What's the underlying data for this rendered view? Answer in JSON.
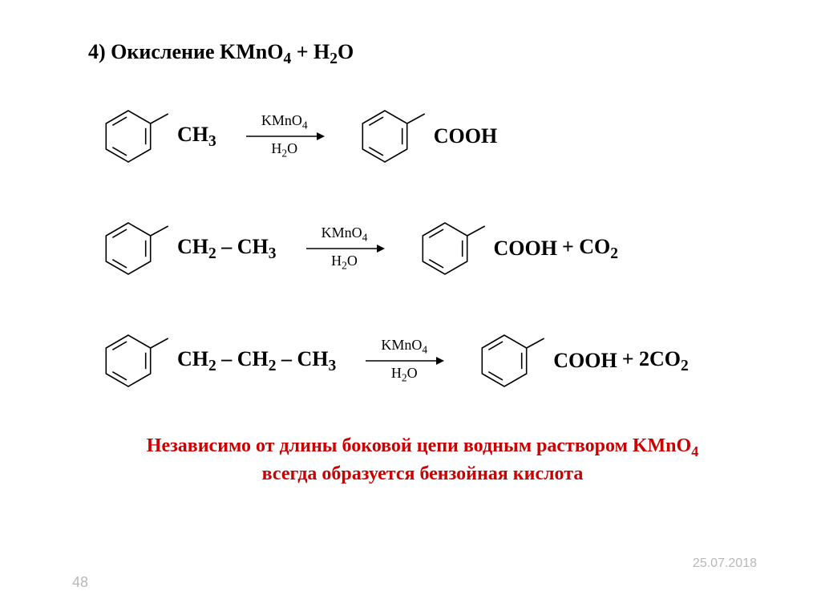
{
  "heading": "4) Окисление KMnO₄ + H₂O",
  "ring": {
    "stroke": "#000000",
    "stroke_width": 1.6
  },
  "arrow": {
    "top_label": "KMnO₄",
    "bottom_label": "H₂O",
    "color": "#000000"
  },
  "reactions": [
    {
      "reactant_subst": "CH₃",
      "product_subst": "COOH",
      "extra": ""
    },
    {
      "reactant_subst": "CH₂ – CH₃",
      "product_subst": "COOH",
      "extra": " + CO₂"
    },
    {
      "reactant_subst": "CH₂ – CH₂ – CH₃",
      "product_subst": "COOH",
      "extra": " + 2CO₂"
    }
  ],
  "conclusion": {
    "line1": "Независимо от длины боковой цепи водным раствором KMnO₄",
    "line2": "всегда образуется бензойная кислота",
    "color": "#cc0000"
  },
  "page_number": "48",
  "date": "25.07.2018",
  "meta_color": "#b8b8b8"
}
